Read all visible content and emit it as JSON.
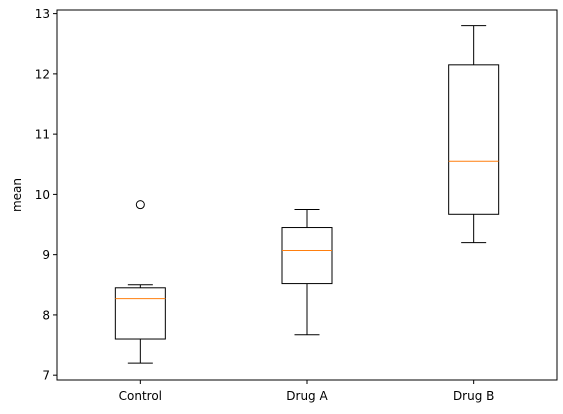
{
  "chart_data": {
    "type": "box",
    "title": "",
    "xlabel": "",
    "ylabel": "mean",
    "ylim": [
      6.92,
      13.06
    ],
    "yticks": [
      7,
      8,
      9,
      10,
      11,
      12,
      13
    ],
    "grid": false,
    "legend": "none",
    "categories": [
      "Control",
      "Drug A",
      "Drug B"
    ],
    "boxes": [
      {
        "category": "Control",
        "whisker_low": 7.2,
        "q1": 7.6,
        "median": 8.27,
        "q3": 8.45,
        "whisker_high": 8.5,
        "outliers": [
          9.83
        ]
      },
      {
        "category": "Drug A",
        "whisker_low": 7.67,
        "q1": 8.52,
        "median": 9.07,
        "q3": 9.45,
        "whisker_high": 9.75,
        "outliers": []
      },
      {
        "category": "Drug B",
        "whisker_low": 9.2,
        "q1": 9.67,
        "median": 10.55,
        "q3": 12.15,
        "whisker_high": 12.8,
        "outliers": []
      }
    ],
    "colors": {
      "box": "#000000",
      "median": "#ff7f0e",
      "outlier": "#000000"
    }
  }
}
